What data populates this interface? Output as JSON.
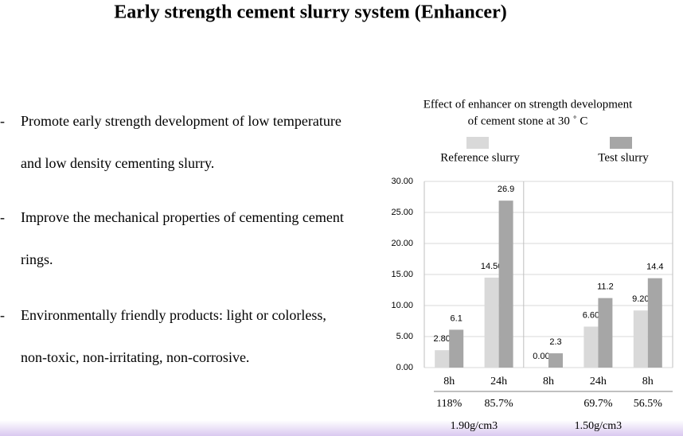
{
  "header": {
    "title": "Early strength cement slurry system (Enhancer)"
  },
  "bullets": [
    {
      "marker": "-",
      "lines": [
        "Promote early strength development of low temperature",
        "and low density cementing slurry."
      ]
    },
    {
      "marker": "-",
      "lines": [
        "Improve the mechanical properties of cementing cement",
        "rings."
      ]
    },
    {
      "marker": "-",
      "lines": [
        "Environmentally friendly products: light or colorless,",
        "non-toxic, non-irritating, non-corrosive."
      ]
    }
  ],
  "chart_data": {
    "type": "bar",
    "title": [
      "Effect of enhancer on strength development",
      "of cement stone at 30 ˚ C"
    ],
    "categories": [
      "8h",
      "24h",
      "8h",
      "24h",
      "8h"
    ],
    "series": [
      {
        "name": "Reference slurry",
        "color": "#d9d9d9",
        "values": [
          2.8,
          14.5,
          0,
          6.6,
          9.2
        ],
        "value_labels": [
          "2.80",
          "14.50",
          "0.00",
          "6.60",
          "9.20"
        ]
      },
      {
        "name": "Test slurry",
        "color": "#a6a6a6",
        "values": [
          6.1,
          26.9,
          2.3,
          11.2,
          14.4
        ]
      }
    ],
    "ratios": [
      "118%",
      "85.7%",
      null,
      "69.7%",
      "56.5%"
    ],
    "groups": [
      {
        "label": "1.90g/cm3",
        "size": 2
      },
      {
        "label": "1.50g/cm3",
        "size": 3
      }
    ],
    "ylim": [
      0,
      30
    ],
    "yticks": [
      {
        "value": 0,
        "label": "0.00"
      },
      {
        "value": 5,
        "label": "5.00"
      },
      {
        "value": 10,
        "label": "10.00"
      },
      {
        "value": 15,
        "label": "15.00"
      },
      {
        "value": 20,
        "label": "20.00"
      },
      {
        "value": 25,
        "label": "25.00"
      },
      {
        "value": 30,
        "label": "30.00"
      }
    ],
    "grid": true
  }
}
